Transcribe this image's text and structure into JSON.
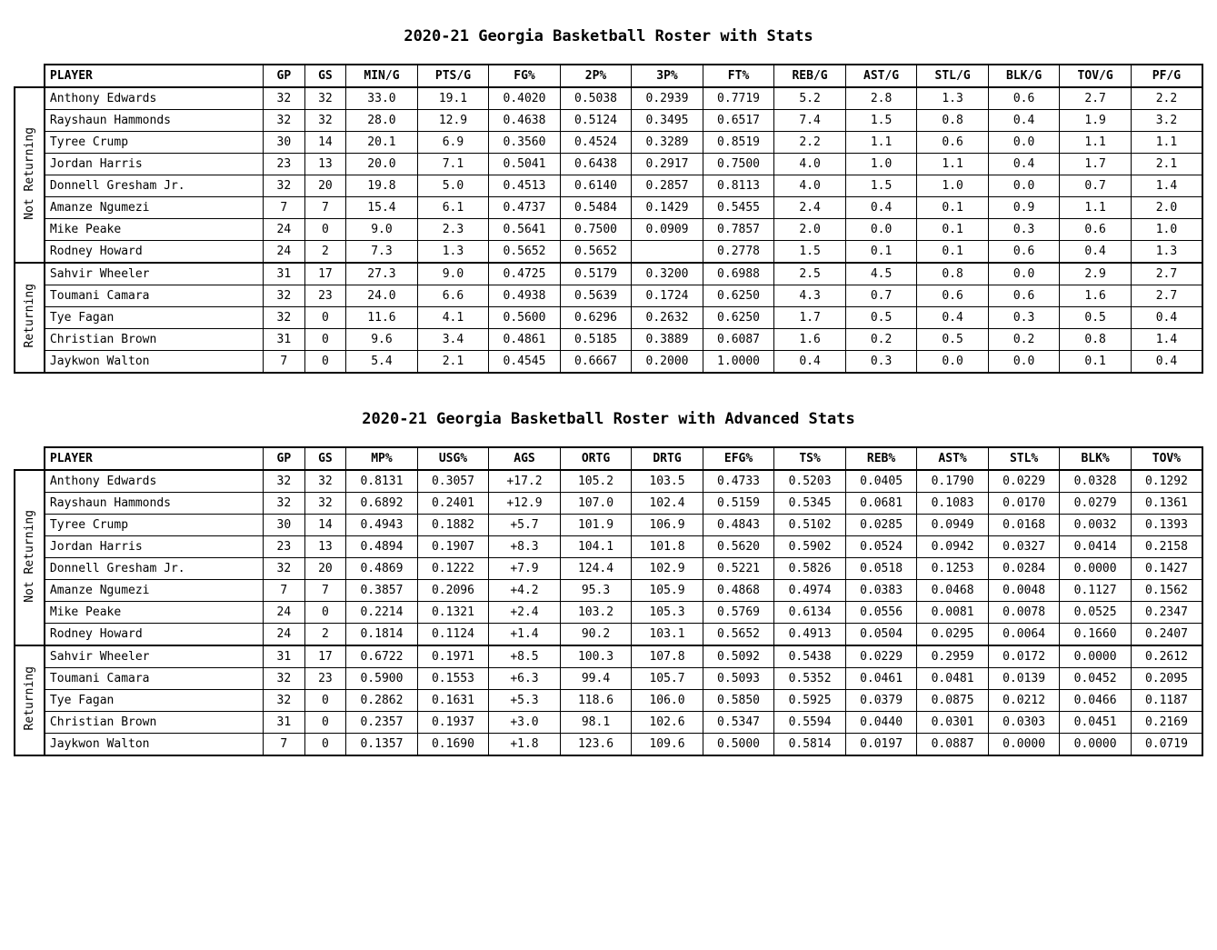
{
  "titles": {
    "basic": "2020-21 Georgia Basketball Roster with Stats",
    "adv": "2020-21 Georgia Basketball Roster with Advanced Stats"
  },
  "groups": [
    "Not Returning",
    "Returning"
  ],
  "basic": {
    "columns": [
      "PLAYER",
      "GP",
      "GS",
      "MIN/G",
      "PTS/G",
      "FG%",
      "2P%",
      "3P%",
      "FT%",
      "REB/G",
      "AST/G",
      "STL/G",
      "BLK/G",
      "TOV/G",
      "PF/G"
    ],
    "sections": [
      {
        "group": "Not Returning",
        "rows": [
          [
            "Anthony Edwards",
            "32",
            "32",
            "33.0",
            "19.1",
            "0.4020",
            "0.5038",
            "0.2939",
            "0.7719",
            "5.2",
            "2.8",
            "1.3",
            "0.6",
            "2.7",
            "2.2"
          ],
          [
            "Rayshaun Hammonds",
            "32",
            "32",
            "28.0",
            "12.9",
            "0.4638",
            "0.5124",
            "0.3495",
            "0.6517",
            "7.4",
            "1.5",
            "0.8",
            "0.4",
            "1.9",
            "3.2"
          ],
          [
            "Tyree Crump",
            "30",
            "14",
            "20.1",
            "6.9",
            "0.3560",
            "0.4524",
            "0.3289",
            "0.8519",
            "2.2",
            "1.1",
            "0.6",
            "0.0",
            "1.1",
            "1.1"
          ],
          [
            "Jordan Harris",
            "23",
            "13",
            "20.0",
            "7.1",
            "0.5041",
            "0.6438",
            "0.2917",
            "0.7500",
            "4.0",
            "1.0",
            "1.1",
            "0.4",
            "1.7",
            "2.1"
          ],
          [
            "Donnell Gresham Jr.",
            "32",
            "20",
            "19.8",
            "5.0",
            "0.4513",
            "0.6140",
            "0.2857",
            "0.8113",
            "4.0",
            "1.5",
            "1.0",
            "0.0",
            "0.7",
            "1.4"
          ],
          [
            "Amanze Ngumezi",
            "7",
            "7",
            "15.4",
            "6.1",
            "0.4737",
            "0.5484",
            "0.1429",
            "0.5455",
            "2.4",
            "0.4",
            "0.1",
            "0.9",
            "1.1",
            "2.0"
          ],
          [
            "Mike Peake",
            "24",
            "0",
            "9.0",
            "2.3",
            "0.5641",
            "0.7500",
            "0.0909",
            "0.7857",
            "2.0",
            "0.0",
            "0.1",
            "0.3",
            "0.6",
            "1.0"
          ],
          [
            "Rodney Howard",
            "24",
            "2",
            "7.3",
            "1.3",
            "0.5652",
            "0.5652",
            "",
            "0.2778",
            "1.5",
            "0.1",
            "0.1",
            "0.6",
            "0.4",
            "1.3"
          ]
        ]
      },
      {
        "group": "Returning",
        "rows": [
          [
            "Sahvir Wheeler",
            "31",
            "17",
            "27.3",
            "9.0",
            "0.4725",
            "0.5179",
            "0.3200",
            "0.6988",
            "2.5",
            "4.5",
            "0.8",
            "0.0",
            "2.9",
            "2.7"
          ],
          [
            "Toumani Camara",
            "32",
            "23",
            "24.0",
            "6.6",
            "0.4938",
            "0.5639",
            "0.1724",
            "0.6250",
            "4.3",
            "0.7",
            "0.6",
            "0.6",
            "1.6",
            "2.7"
          ],
          [
            "Tye Fagan",
            "32",
            "0",
            "11.6",
            "4.1",
            "0.5600",
            "0.6296",
            "0.2632",
            "0.6250",
            "1.7",
            "0.5",
            "0.4",
            "0.3",
            "0.5",
            "0.4"
          ],
          [
            "Christian Brown",
            "31",
            "0",
            "9.6",
            "3.4",
            "0.4861",
            "0.5185",
            "0.3889",
            "0.6087",
            "1.6",
            "0.2",
            "0.5",
            "0.2",
            "0.8",
            "1.4"
          ],
          [
            "Jaykwon Walton",
            "7",
            "0",
            "5.4",
            "2.1",
            "0.4545",
            "0.6667",
            "0.2000",
            "1.0000",
            "0.4",
            "0.3",
            "0.0",
            "0.0",
            "0.1",
            "0.4"
          ]
        ]
      }
    ]
  },
  "adv": {
    "columns": [
      "PLAYER",
      "GP",
      "GS",
      "MP%",
      "USG%",
      "AGS",
      "ORTG",
      "DRTG",
      "EFG%",
      "TS%",
      "REB%",
      "AST%",
      "STL%",
      "BLK%",
      "TOV%"
    ],
    "sections": [
      {
        "group": "Not Returning",
        "rows": [
          [
            "Anthony Edwards",
            "32",
            "32",
            "0.8131",
            "0.3057",
            "+17.2",
            "105.2",
            "103.5",
            "0.4733",
            "0.5203",
            "0.0405",
            "0.1790",
            "0.0229",
            "0.0328",
            "0.1292"
          ],
          [
            "Rayshaun Hammonds",
            "32",
            "32",
            "0.6892",
            "0.2401",
            "+12.9",
            "107.0",
            "102.4",
            "0.5159",
            "0.5345",
            "0.0681",
            "0.1083",
            "0.0170",
            "0.0279",
            "0.1361"
          ],
          [
            "Tyree Crump",
            "30",
            "14",
            "0.4943",
            "0.1882",
            "+5.7",
            "101.9",
            "106.9",
            "0.4843",
            "0.5102",
            "0.0285",
            "0.0949",
            "0.0168",
            "0.0032",
            "0.1393"
          ],
          [
            "Jordan Harris",
            "23",
            "13",
            "0.4894",
            "0.1907",
            "+8.3",
            "104.1",
            "101.8",
            "0.5620",
            "0.5902",
            "0.0524",
            "0.0942",
            "0.0327",
            "0.0414",
            "0.2158"
          ],
          [
            "Donnell Gresham Jr.",
            "32",
            "20",
            "0.4869",
            "0.1222",
            "+7.9",
            "124.4",
            "102.9",
            "0.5221",
            "0.5826",
            "0.0518",
            "0.1253",
            "0.0284",
            "0.0000",
            "0.1427"
          ],
          [
            "Amanze Ngumezi",
            "7",
            "7",
            "0.3857",
            "0.2096",
            "+4.2",
            "95.3",
            "105.9",
            "0.4868",
            "0.4974",
            "0.0383",
            "0.0468",
            "0.0048",
            "0.1127",
            "0.1562"
          ],
          [
            "Mike Peake",
            "24",
            "0",
            "0.2214",
            "0.1321",
            "+2.4",
            "103.2",
            "105.3",
            "0.5769",
            "0.6134",
            "0.0556",
            "0.0081",
            "0.0078",
            "0.0525",
            "0.2347"
          ],
          [
            "Rodney Howard",
            "24",
            "2",
            "0.1814",
            "0.1124",
            "+1.4",
            "90.2",
            "103.1",
            "0.5652",
            "0.4913",
            "0.0504",
            "0.0295",
            "0.0064",
            "0.1660",
            "0.2407"
          ]
        ]
      },
      {
        "group": "Returning",
        "rows": [
          [
            "Sahvir Wheeler",
            "31",
            "17",
            "0.6722",
            "0.1971",
            "+8.5",
            "100.3",
            "107.8",
            "0.5092",
            "0.5438",
            "0.0229",
            "0.2959",
            "0.0172",
            "0.0000",
            "0.2612"
          ],
          [
            "Toumani Camara",
            "32",
            "23",
            "0.5900",
            "0.1553",
            "+6.3",
            "99.4",
            "105.7",
            "0.5093",
            "0.5352",
            "0.0461",
            "0.0481",
            "0.0139",
            "0.0452",
            "0.2095"
          ],
          [
            "Tye Fagan",
            "32",
            "0",
            "0.2862",
            "0.1631",
            "+5.3",
            "118.6",
            "106.0",
            "0.5850",
            "0.5925",
            "0.0379",
            "0.0875",
            "0.0212",
            "0.0466",
            "0.1187"
          ],
          [
            "Christian Brown",
            "31",
            "0",
            "0.2357",
            "0.1937",
            "+3.0",
            "98.1",
            "102.6",
            "0.5347",
            "0.5594",
            "0.0440",
            "0.0301",
            "0.0303",
            "0.0451",
            "0.2169"
          ],
          [
            "Jaykwon Walton",
            "7",
            "0",
            "0.1357",
            "0.1690",
            "+1.8",
            "123.6",
            "109.6",
            "0.5000",
            "0.5814",
            "0.0197",
            "0.0887",
            "0.0000",
            "0.0000",
            "0.0719"
          ]
        ]
      }
    ]
  }
}
